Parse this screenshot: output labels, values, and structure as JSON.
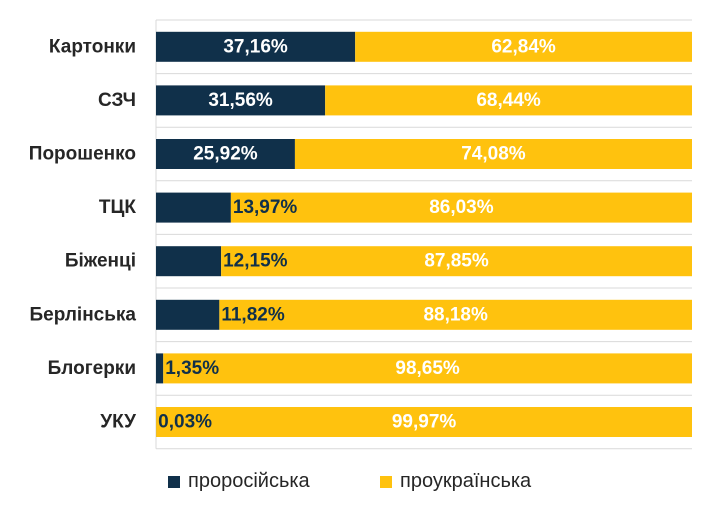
{
  "chart_data": {
    "type": "bar",
    "orientation": "horizontal",
    "stacked": true,
    "categories": [
      "Картонки",
      "СЗЧ",
      "Порошенко",
      "ТЦК",
      "Біженці",
      "Берлінська",
      "Блогерки",
      "УКУ"
    ],
    "series": [
      {
        "name": "проросійська",
        "color": "#10304a",
        "values": [
          37.16,
          31.56,
          25.92,
          13.97,
          12.15,
          11.82,
          1.35,
          0.03
        ],
        "labels": [
          "37,16%",
          "31,56%",
          "25,92%",
          "13,97%",
          "12,15%",
          "11,82%",
          "1,35%",
          "0,03%"
        ]
      },
      {
        "name": "проукраїнська",
        "color": "#ffc20e",
        "values": [
          62.84,
          68.44,
          74.08,
          86.03,
          87.85,
          88.18,
          98.65,
          99.97
        ],
        "labels": [
          "62,84%",
          "68,44%",
          "74,08%",
          "86,03%",
          "87,85%",
          "88,18%",
          "98,65%",
          "99,97%"
        ]
      }
    ],
    "xlim": [
      0,
      100
    ],
    "grid": true,
    "legend_position": "bottom"
  }
}
